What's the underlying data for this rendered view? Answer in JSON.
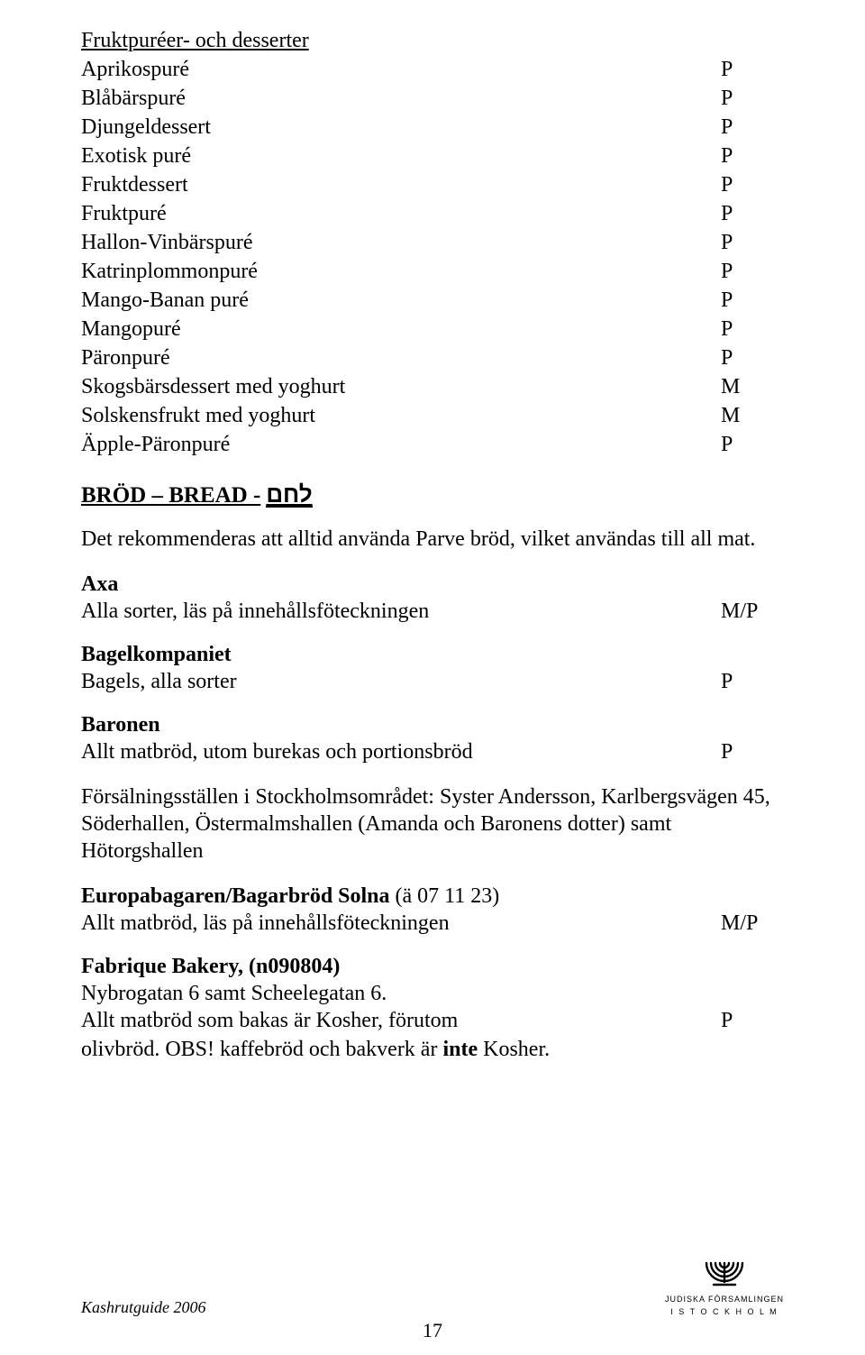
{
  "section1": {
    "title": "Fruktpuréer- och desserter",
    "rows": [
      {
        "label": "Aprikospuré",
        "val": "P"
      },
      {
        "label": "Blåbärspuré",
        "val": "P"
      },
      {
        "label": "Djungeldessert",
        "val": "P"
      },
      {
        "label": "Exotisk puré",
        "val": "P"
      },
      {
        "label": "Fruktdessert",
        "val": "P"
      },
      {
        "label": "Fruktpuré",
        "val": "P"
      },
      {
        "label": "Hallon-Vinbärspuré",
        "val": "P"
      },
      {
        "label": "Katrinplommonpuré",
        "val": "P"
      },
      {
        "label": "Mango-Banan puré",
        "val": "P"
      },
      {
        "label": "Mangopuré",
        "val": "P"
      },
      {
        "label": "Päronpuré",
        "val": "P"
      },
      {
        "label": "Skogsbärsdessert med yoghurt",
        "val": "M"
      },
      {
        "label": "Solskensfrukt med yoghurt",
        "val": "M"
      },
      {
        "label": "Äpple-Päronpuré",
        "val": "P"
      }
    ]
  },
  "bread": {
    "heading": "BRÖD – BREAD - ",
    "hebrew": "לחם",
    "intro": "Det rekommenderas att alltid använda Parve bröd, vilket användas till all mat."
  },
  "axa": {
    "brand": "Axa",
    "row": {
      "label": "Alla sorter, läs på innehållsföteckningen",
      "val": "M/P"
    }
  },
  "bagel": {
    "brand": "Bagelkompaniet",
    "row": {
      "label": "Bagels, alla sorter",
      "val": "P"
    }
  },
  "baronen": {
    "brand": "Baronen",
    "row": {
      "label": "Allt matbröd, utom burekas och portionsbröd",
      "val": "P"
    },
    "para": "Försälningsställen i Stockholmsområdet: Syster Andersson, Karlbergsvägen 45,  Söderhallen, Östermalmshallen (Amanda och Baronens dotter) samt Hötorgshallen"
  },
  "europa": {
    "brand": "Europabagaren/Bagarbröd Solna",
    "paren": "  (ä 07 11 23)",
    "row": {
      "label": "Allt matbröd, läs på innehållsföteckningen",
      "val": "M/P"
    }
  },
  "fabrique": {
    "brand": "Fabrique Bakery,  (n090804)",
    "line1": "Nybrogatan 6 samt Scheelegatan 6.",
    "row": {
      "label": "Allt matbröd som bakas är Kosher,  förutom",
      "val": "P"
    },
    "line3a": "olivbröd.  OBS! kaffebröd och bakverk är ",
    "line3b": "inte",
    "line3c": " Kosher."
  },
  "footer": {
    "left": "Kashrutguide 2006",
    "page": "17",
    "logo": {
      "line1": "JUDISKA FÖRSAMLINGEN",
      "line2": "I  S T O C K H O L M"
    }
  }
}
